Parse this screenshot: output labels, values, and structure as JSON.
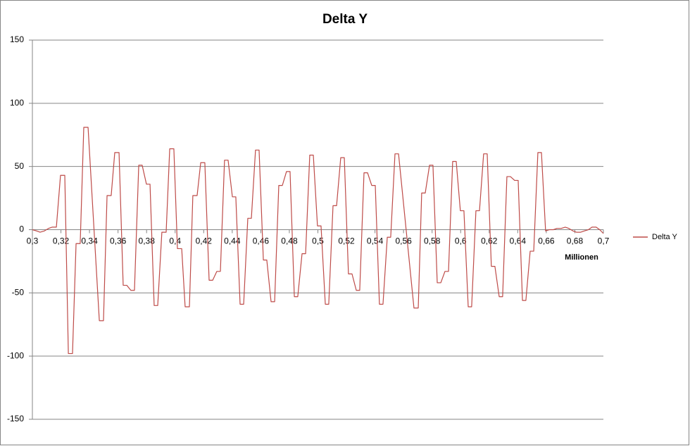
{
  "chart_data": {
    "type": "line",
    "title": "Delta Y",
    "x_label": "Millionen",
    "xlim": [
      0.3,
      0.7
    ],
    "ylim": [
      -150,
      150
    ],
    "xticks": [
      {
        "value": 0.3,
        "label": "0,3"
      },
      {
        "value": 0.32,
        "label": "0,32"
      },
      {
        "value": 0.34,
        "label": "0,34"
      },
      {
        "value": 0.36,
        "label": "0,36"
      },
      {
        "value": 0.38,
        "label": "0,38"
      },
      {
        "value": 0.4,
        "label": "0,4"
      },
      {
        "value": 0.42,
        "label": "0,42"
      },
      {
        "value": 0.44,
        "label": "0,44"
      },
      {
        "value": 0.46,
        "label": "0,46"
      },
      {
        "value": 0.48,
        "label": "0,48"
      },
      {
        "value": 0.5,
        "label": "0,5"
      },
      {
        "value": 0.52,
        "label": "0,52"
      },
      {
        "value": 0.54,
        "label": "0,54"
      },
      {
        "value": 0.56,
        "label": "0,56"
      },
      {
        "value": 0.58,
        "label": "0,58"
      },
      {
        "value": 0.6,
        "label": "0,6"
      },
      {
        "value": 0.62,
        "label": "0,62"
      },
      {
        "value": 0.64,
        "label": "0,64"
      },
      {
        "value": 0.66,
        "label": "0,66"
      },
      {
        "value": 0.68,
        "label": "0,68"
      },
      {
        "value": 0.7,
        "label": "0,7"
      }
    ],
    "yticks": [
      -150,
      -100,
      -50,
      0,
      50,
      100,
      150
    ],
    "grid": true,
    "legend": "right",
    "x": [
      0.3,
      0.303,
      0.3054,
      0.3084,
      0.3113,
      0.3138,
      0.3168,
      0.3197,
      0.3227,
      0.3252,
      0.3281,
      0.3306,
      0.3335,
      0.336,
      0.339,
      0.3469,
      0.3498,
      0.3523,
      0.3552,
      0.3577,
      0.3607,
      0.3636,
      0.3661,
      0.369,
      0.3715,
      0.3745,
      0.3769,
      0.3799,
      0.3824,
      0.3853,
      0.3878,
      0.3907,
      0.3937,
      0.3962,
      0.3991,
      0.4016,
      0.4046,
      0.407,
      0.41,
      0.4124,
      0.4154,
      0.4179,
      0.4208,
      0.4238,
      0.4263,
      0.4292,
      0.4317,
      0.4346,
      0.4371,
      0.4401,
      0.4425,
      0.4455,
      0.448,
      0.4509,
      0.4534,
      0.4563,
      0.4588,
      0.4618,
      0.4642,
      0.4672,
      0.4697,
      0.4726,
      0.4751,
      0.478,
      0.4805,
      0.4835,
      0.4859,
      0.4889,
      0.4914,
      0.4943,
      0.4968,
      0.4997,
      0.5022,
      0.5052,
      0.5076,
      0.5106,
      0.5131,
      0.516,
      0.5185,
      0.5214,
      0.5239,
      0.5269,
      0.5293,
      0.5323,
      0.5348,
      0.5377,
      0.5402,
      0.5431,
      0.5456,
      0.5486,
      0.551,
      0.554,
      0.5565,
      0.5673,
      0.5703,
      0.5727,
      0.5752,
      0.5782,
      0.5806,
      0.5836,
      0.5861,
      0.589,
      0.5915,
      0.5944,
      0.5969,
      0.5998,
      0.6023,
      0.6053,
      0.6077,
      0.6107,
      0.6132,
      0.6161,
      0.6186,
      0.6215,
      0.624,
      0.627,
      0.6294,
      0.6324,
      0.6349,
      0.6378,
      0.6403,
      0.6433,
      0.6457,
      0.6487,
      0.6512,
      0.6541,
      0.6566,
      0.6595,
      0.662,
      0.665,
      0.6674,
      0.6704,
      0.6733,
      0.6758,
      0.6787,
      0.6811,
      0.6841,
      0.6866,
      0.6895,
      0.692,
      0.6949,
      0.6974,
      0.7
    ],
    "series": [
      {
        "name": "Delta Y",
        "color": "#be4b48",
        "values": [
          0,
          -1,
          -2,
          -1,
          1,
          2,
          2,
          43,
          43,
          -98,
          -98,
          -11,
          -11,
          81,
          81,
          -72,
          -72,
          27,
          27,
          61,
          61,
          -44,
          -44,
          -48,
          -48,
          51,
          51,
          36,
          36,
          -60,
          -60,
          -2,
          -2,
          64,
          64,
          -15,
          -15,
          -61,
          -61,
          27,
          27,
          53,
          53,
          -40,
          -40,
          -33,
          -33,
          55,
          55,
          26,
          26,
          -59,
          -59,
          9,
          9,
          63,
          63,
          -24,
          -24,
          -57,
          -57,
          35,
          35,
          46,
          46,
          -53,
          -53,
          -19,
          -19,
          59,
          59,
          3,
          3,
          -59,
          -59,
          19,
          19,
          57,
          57,
          -35,
          -35,
          -48,
          -48,
          45,
          45,
          35,
          35,
          -59,
          -59,
          -6,
          -6,
          60,
          60,
          -62,
          -62,
          29,
          29,
          51,
          51,
          -42,
          -42,
          -33,
          -33,
          54,
          54,
          15,
          15,
          -61,
          -61,
          15,
          15,
          60,
          60,
          -29,
          -29,
          -53,
          -53,
          42,
          42,
          39,
          39,
          -56,
          -56,
          -17,
          -17,
          61,
          61,
          -1,
          0,
          0,
          1,
          1,
          2,
          1,
          -1,
          -2,
          -2,
          -1,
          0,
          2,
          2,
          0,
          -3
        ]
      }
    ]
  }
}
